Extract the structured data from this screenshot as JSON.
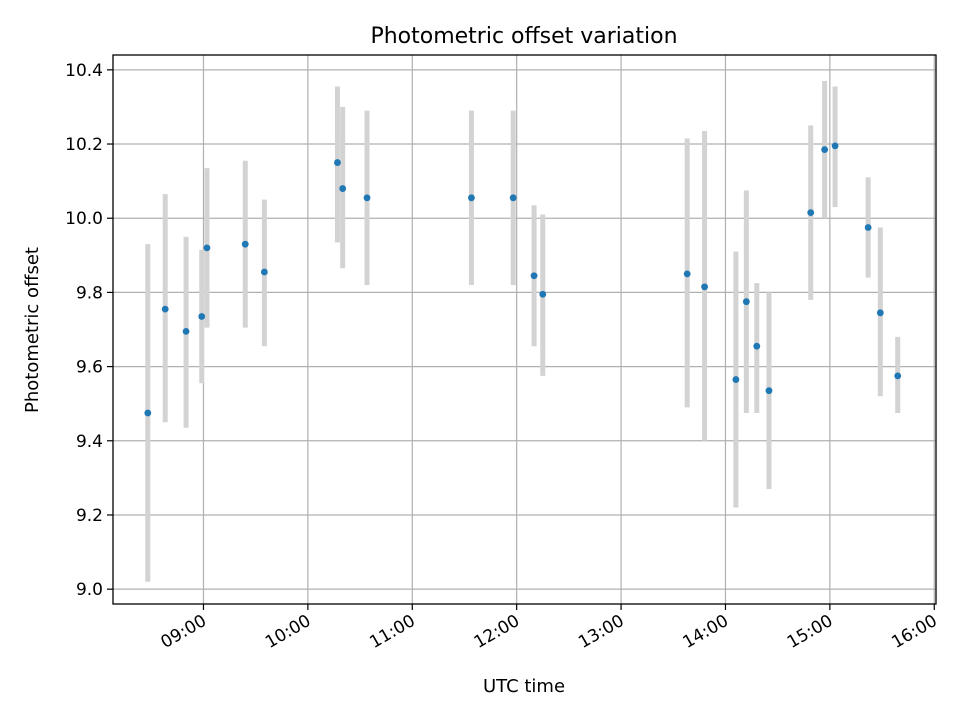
{
  "chart_data": {
    "type": "scatter",
    "title": "Photometric offset variation",
    "xlabel": "UTC time",
    "ylabel": "Photometric offset",
    "grid": true,
    "x_ticks": [
      "09:00",
      "10:00",
      "11:00",
      "12:00",
      "13:00",
      "14:00",
      "15:00",
      "16:00"
    ],
    "y_ticks": [
      "9.0",
      "9.2",
      "9.4",
      "9.6",
      "9.8",
      "10.0",
      "10.2",
      "10.4"
    ],
    "xlim": [
      "08:08",
      "16:01"
    ],
    "ylim": [
      8.96,
      10.44
    ],
    "point_color": "#1f77b4",
    "errorbar_color": "#d3d3d3",
    "points": [
      {
        "x": "08:28",
        "y": 9.475,
        "lo": 9.02,
        "hi": 9.93
      },
      {
        "x": "08:38",
        "y": 9.755,
        "lo": 9.45,
        "hi": 10.065
      },
      {
        "x": "08:50",
        "y": 9.695,
        "lo": 9.435,
        "hi": 9.95
      },
      {
        "x": "08:59",
        "y": 9.735,
        "lo": 9.555,
        "hi": 9.915
      },
      {
        "x": "09:02",
        "y": 9.92,
        "lo": 9.705,
        "hi": 10.135
      },
      {
        "x": "09:24",
        "y": 9.93,
        "lo": 9.705,
        "hi": 10.155
      },
      {
        "x": "09:35",
        "y": 9.855,
        "lo": 9.655,
        "hi": 10.05
      },
      {
        "x": "10:17",
        "y": 10.15,
        "lo": 9.935,
        "hi": 10.355
      },
      {
        "x": "10:20",
        "y": 10.08,
        "lo": 9.865,
        "hi": 10.3
      },
      {
        "x": "10:34",
        "y": 10.055,
        "lo": 9.82,
        "hi": 10.29
      },
      {
        "x": "11:34",
        "y": 10.055,
        "lo": 9.82,
        "hi": 10.29
      },
      {
        "x": "11:58",
        "y": 10.055,
        "lo": 9.82,
        "hi": 10.29
      },
      {
        "x": "12:10",
        "y": 9.845,
        "lo": 9.655,
        "hi": 10.035
      },
      {
        "x": "12:15",
        "y": 9.795,
        "lo": 9.575,
        "hi": 10.01
      },
      {
        "x": "13:38",
        "y": 9.85,
        "lo": 9.49,
        "hi": 10.215
      },
      {
        "x": "13:48",
        "y": 9.815,
        "lo": 9.4,
        "hi": 10.235
      },
      {
        "x": "14:06",
        "y": 9.565,
        "lo": 9.22,
        "hi": 9.91
      },
      {
        "x": "14:12",
        "y": 9.775,
        "lo": 9.475,
        "hi": 10.075
      },
      {
        "x": "14:18",
        "y": 9.655,
        "lo": 9.475,
        "hi": 9.825
      },
      {
        "x": "14:25",
        "y": 9.535,
        "lo": 9.27,
        "hi": 9.8
      },
      {
        "x": "14:49",
        "y": 10.015,
        "lo": 9.78,
        "hi": 10.25
      },
      {
        "x": "14:57",
        "y": 10.185,
        "lo": 10.0,
        "hi": 10.37
      },
      {
        "x": "15:03",
        "y": 10.195,
        "lo": 10.03,
        "hi": 10.355
      },
      {
        "x": "15:22",
        "y": 9.975,
        "lo": 9.84,
        "hi": 10.11
      },
      {
        "x": "15:29",
        "y": 9.745,
        "lo": 9.52,
        "hi": 9.975
      },
      {
        "x": "15:39",
        "y": 9.575,
        "lo": 9.475,
        "hi": 9.68
      }
    ]
  }
}
